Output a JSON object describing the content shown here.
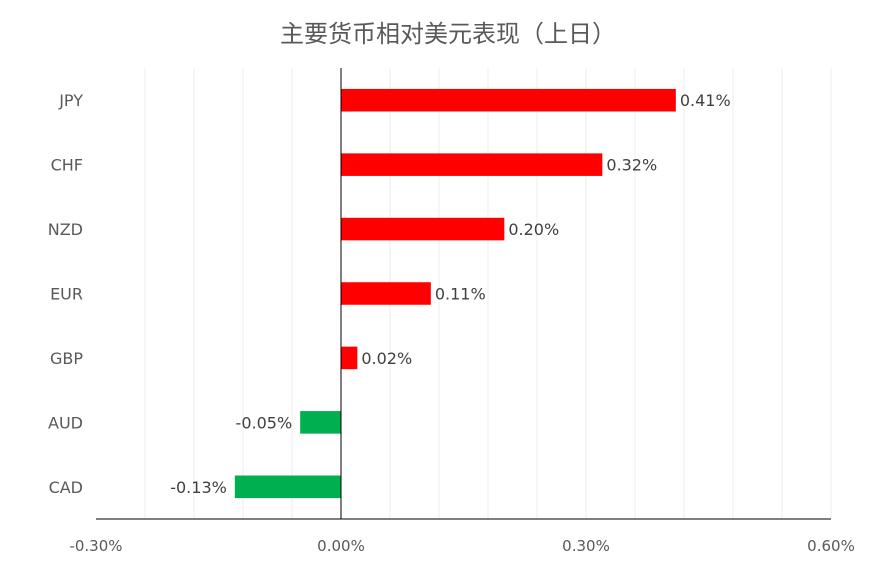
{
  "chart_data": {
    "type": "bar",
    "orientation": "horizontal",
    "title": "主要货币相对美元表现（上日）",
    "categories": [
      "JPY",
      "CHF",
      "NZD",
      "EUR",
      "GBP",
      "AUD",
      "CAD"
    ],
    "values": [
      0.41,
      0.32,
      0.2,
      0.11,
      0.02,
      -0.05,
      -0.13
    ],
    "data_labels": [
      "0.41%",
      "0.32%",
      "0.20%",
      "0.11%",
      "0.02%",
      "-0.05%",
      "-0.13%"
    ],
    "xlim": [
      -0.3,
      0.6
    ],
    "x_ticks": [
      -0.3,
      0.0,
      0.3,
      0.6
    ],
    "x_tick_labels": [
      "-0.30%",
      "0.00%",
      "0.30%",
      "0.60%"
    ],
    "minor_gridline_step": 0.06,
    "grid": true,
    "legend": "none",
    "colors": {
      "positive": "#ff0000",
      "negative": "#00b050",
      "grid": "#ececec",
      "axis": "#000000"
    }
  }
}
